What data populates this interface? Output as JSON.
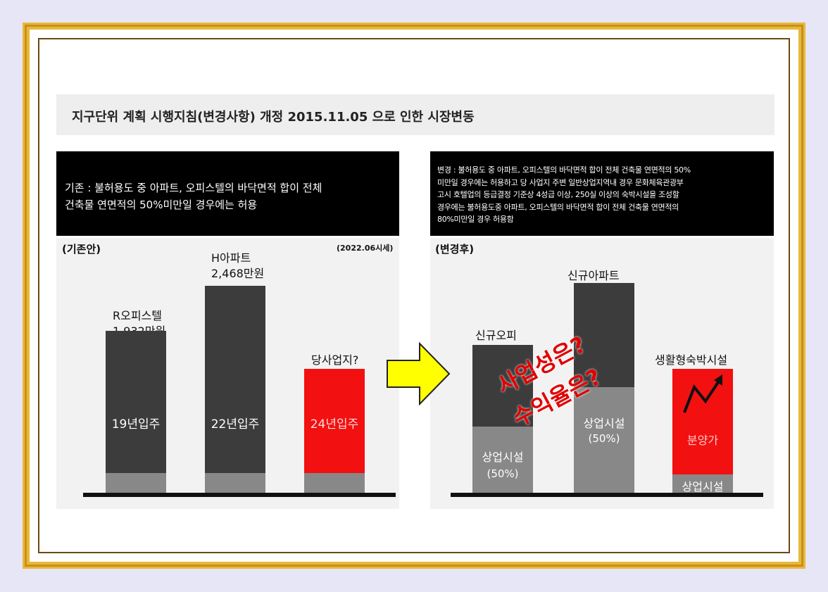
{
  "title": "지구단위 계획 시행지침(변경사항) 개정 2015.11.05 으로 인한 시장변동",
  "left_box": {
    "line1": "기존 : 불허용도 중 아파트, 오피스텔의 바닥면적  합이 전체",
    "line2": "건축물 연면적의 50%미만일 경우에는 허용"
  },
  "right_box": {
    "line1": "변경 : 불허용도 중 아파트, 오피스텔의 바닥면적 합이 전체 건축물 연면적의 50%",
    "line2": "미만일 경우에는 허용하고  당 사업지 주변 일반상업지역내 경우 문화체육관광부",
    "line3": "고시 호텔업의 등급결정 기준상 4성급 이상, 250실 이상의 숙박시설을 조성할",
    "line4": "경우에는 불허용도중 아파트, 오피스텔의 바닥면적 합이 전체 건축물 연면적의",
    "line5": "80%미만일 경우 허용함"
  },
  "chart_data": [
    {
      "type": "bar",
      "panel_label": "(기존안)",
      "note": "(2022.06시세)",
      "categories": [
        "R오피스텔",
        "H아파트",
        "당사업지?"
      ],
      "price_labels": [
        "1,932만원",
        "2,468만원",
        ""
      ],
      "values": [
        1932,
        2468,
        null
      ],
      "bar_labels": [
        "19년입주",
        "22년입주",
        "24년입주"
      ],
      "colors": [
        "#3c3c3c",
        "#3c3c3c",
        "#f21010"
      ]
    },
    {
      "type": "bar",
      "panel_label": "(변경후)",
      "categories": [
        "신규오피",
        "신규아파트",
        "생활형숙박시설"
      ],
      "lower_segments": [
        "상업시설",
        "상업시설",
        "상업시설"
      ],
      "lower_percent": [
        "(50%)",
        "(50%)",
        ""
      ],
      "upper_label_third": "분양가",
      "overlay": [
        "사업성은?",
        "수익율은?"
      ],
      "colors": {
        "upper": "#3c3c3c",
        "lower": "#888888",
        "highlight": "#f21010"
      }
    }
  ]
}
